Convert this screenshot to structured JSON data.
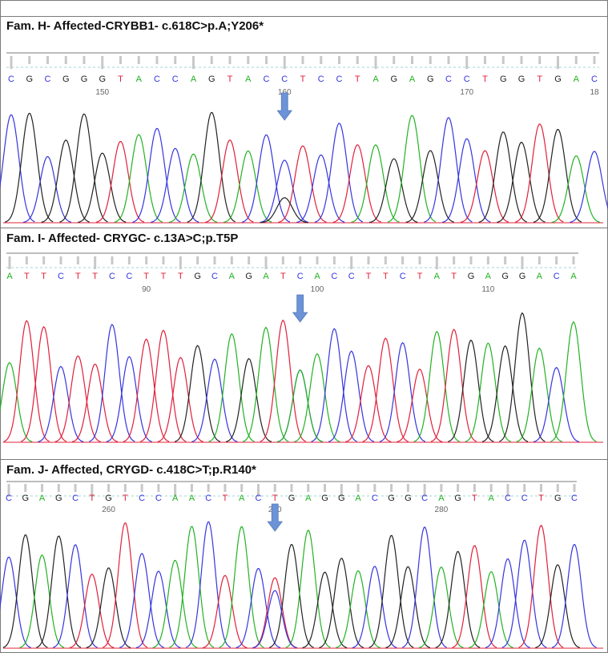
{
  "colors": {
    "A": "#22b222",
    "C": "#3535e0",
    "G": "#222222",
    "T": "#e0203a",
    "arrow": "#6c93d8",
    "baseline": "#e0203a"
  },
  "panels": [
    {
      "title": "Fam. H- Affected-CRYBB1- c.618C>p.A;Y206*",
      "sequence": "CGCGGGTACCAGTACCTCCTAGAGCCTGGTGAC",
      "ticks": [
        "150",
        "160",
        "170",
        "18"
      ],
      "tick_base_index": [
        5,
        15,
        25,
        32
      ],
      "arrow_base_index": 15,
      "secondary": [
        {
          "index": 15,
          "base": "G",
          "rel_height": 0.22
        }
      ]
    },
    {
      "title": "Fam. I- Affected- CRYGC- c.13A>C;p.T5P",
      "sequence": "ATTCTTCCTTTGCAGATCACCTTCTATGAGGACA",
      "ticks": [
        "90",
        "100",
        "110"
      ],
      "tick_base_index": [
        8,
        18,
        28
      ],
      "arrow_base_index": 17,
      "secondary": [
        {
          "index": 17,
          "base": "A",
          "rel_height": 0.55
        }
      ]
    },
    {
      "title": "Fam. J- Affected, CRYGD- c.418C>T;p.R140*",
      "sequence": "CGAGCTGTCCAACTACTGAGGACGGCAGTACCTGC",
      "ticks": [
        "260",
        "270",
        "280"
      ],
      "tick_base_index": [
        6,
        16,
        26
      ],
      "arrow_base_index": 16,
      "secondary": [
        {
          "index": 16,
          "base": "C",
          "rel_height": 0.45
        }
      ]
    }
  ]
}
